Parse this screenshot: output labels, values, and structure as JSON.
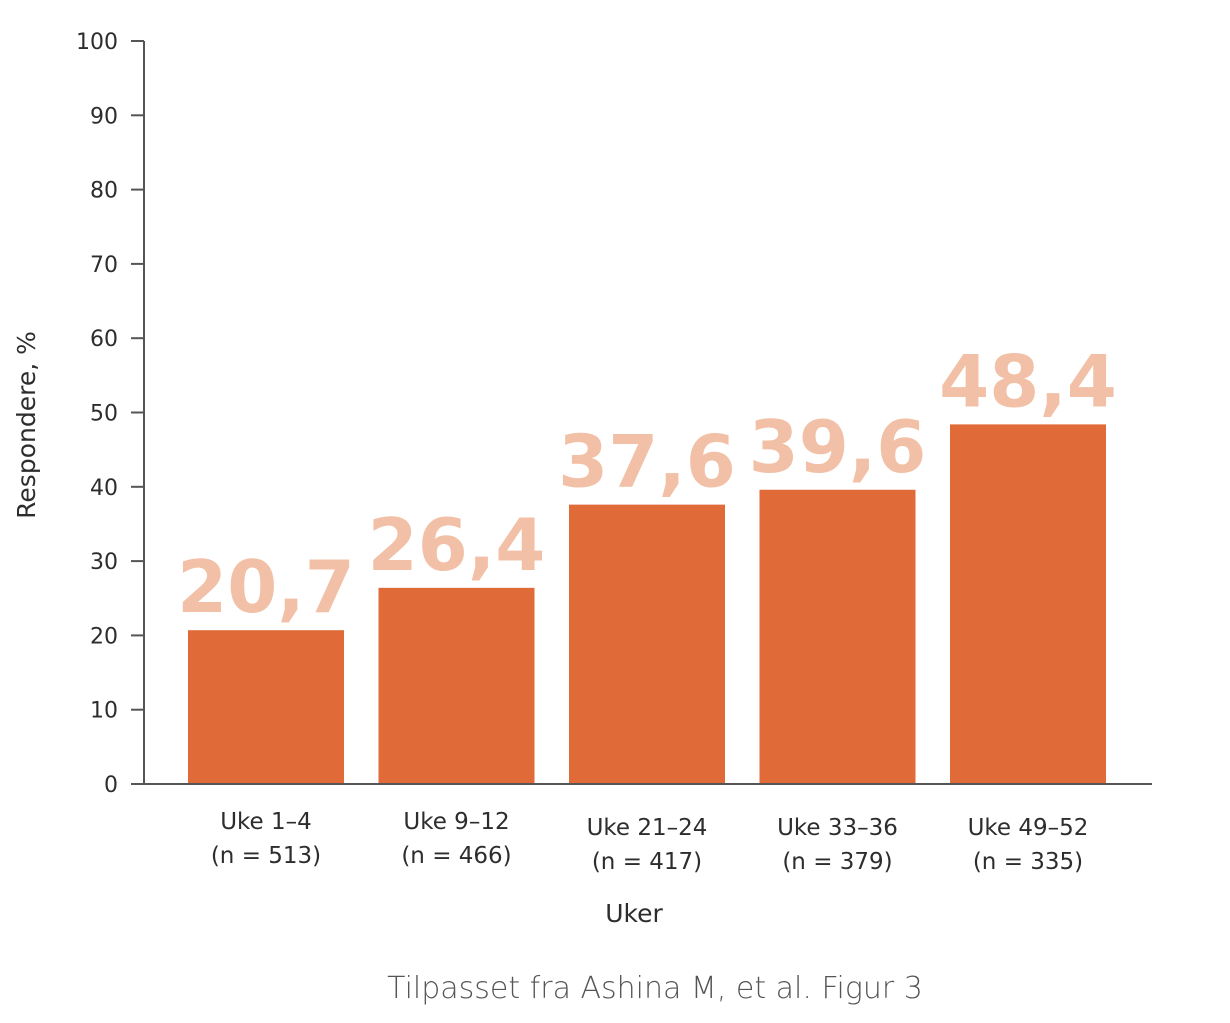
{
  "chart_data": {
    "type": "bar",
    "categories": [
      [
        "Uke 1–4",
        "(n = 513)"
      ],
      [
        "Uke 9–12",
        "(n = 466)"
      ],
      [
        "Uke 21–24",
        "(n = 417)"
      ],
      [
        "Uke 33–36",
        "(n = 379)"
      ],
      [
        "Uke 49–52",
        "(n = 335)"
      ]
    ],
    "values": [
      20.7,
      26.4,
      37.6,
      39.6,
      48.4
    ],
    "value_labels": [
      "20,7",
      "26,4",
      "37,6",
      "39,6",
      "48,4"
    ],
    "xlabel": "Uker",
    "ylabel": "Respondere, %",
    "ylim": [
      0,
      100
    ],
    "yticks": [
      0,
      10,
      20,
      30,
      40,
      50,
      60,
      70,
      80,
      90,
      100
    ],
    "grid": false,
    "legend": "none",
    "colors": {
      "bar": "#e06a38",
      "value_label": "#f2c0a6",
      "axis": "#555555"
    }
  },
  "footer": {
    "source": "Tilpasset fra Ashina M, et al. Figur 3"
  }
}
